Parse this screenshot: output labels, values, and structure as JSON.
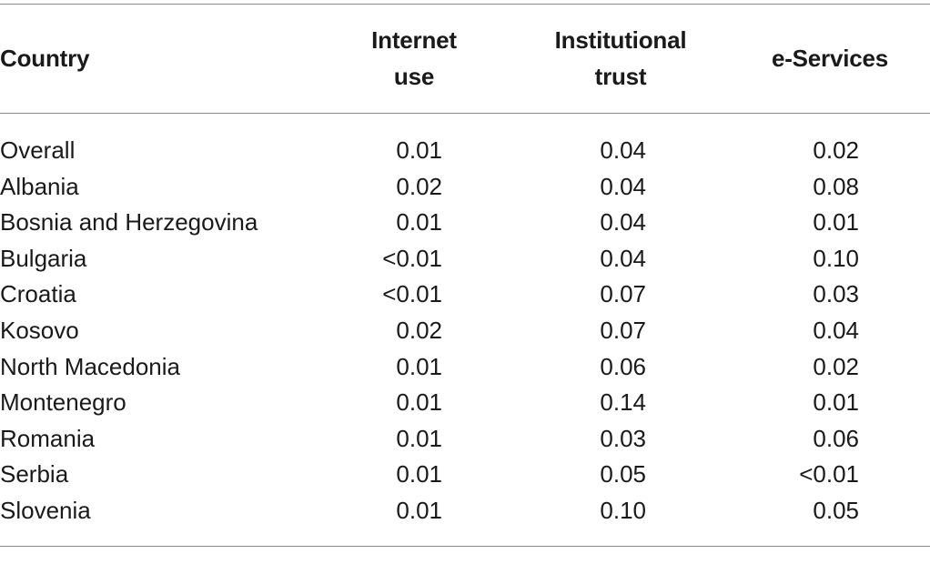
{
  "table": {
    "columns": [
      {
        "lines": [
          "Country"
        ]
      },
      {
        "lines": [
          "Internet",
          "use"
        ]
      },
      {
        "lines": [
          "Institutional",
          "trust"
        ]
      },
      {
        "lines": [
          "e-Services"
        ]
      }
    ],
    "rows": [
      {
        "country": "Overall",
        "internet_use": "0.01",
        "institutional_trust": "0.04",
        "e_services": "0.02"
      },
      {
        "country": "Albania",
        "internet_use": "0.02",
        "institutional_trust": "0.04",
        "e_services": "0.08"
      },
      {
        "country": "Bosnia and Herzegovina",
        "internet_use": "0.01",
        "institutional_trust": "0.04",
        "e_services": "0.01"
      },
      {
        "country": "Bulgaria",
        "internet_use": "<0.01",
        "institutional_trust": "0.04",
        "e_services": "0.10"
      },
      {
        "country": "Croatia",
        "internet_use": "<0.01",
        "institutional_trust": "0.07",
        "e_services": "0.03"
      },
      {
        "country": "Kosovo",
        "internet_use": "0.02",
        "institutional_trust": "0.07",
        "e_services": "0.04"
      },
      {
        "country": "North Macedonia",
        "internet_use": "0.01",
        "institutional_trust": "0.06",
        "e_services": "0.02"
      },
      {
        "country": "Montenegro",
        "internet_use": "0.01",
        "institutional_trust": "0.14",
        "e_services": "0.01"
      },
      {
        "country": "Romania",
        "internet_use": "0.01",
        "institutional_trust": "0.03",
        "e_services": "0.06"
      },
      {
        "country": "Serbia",
        "internet_use": "0.01",
        "institutional_trust": "0.05",
        "e_services": "<0.01"
      },
      {
        "country": "Slovenia",
        "internet_use": "0.01",
        "institutional_trust": "0.10",
        "e_services": "0.05"
      }
    ]
  }
}
